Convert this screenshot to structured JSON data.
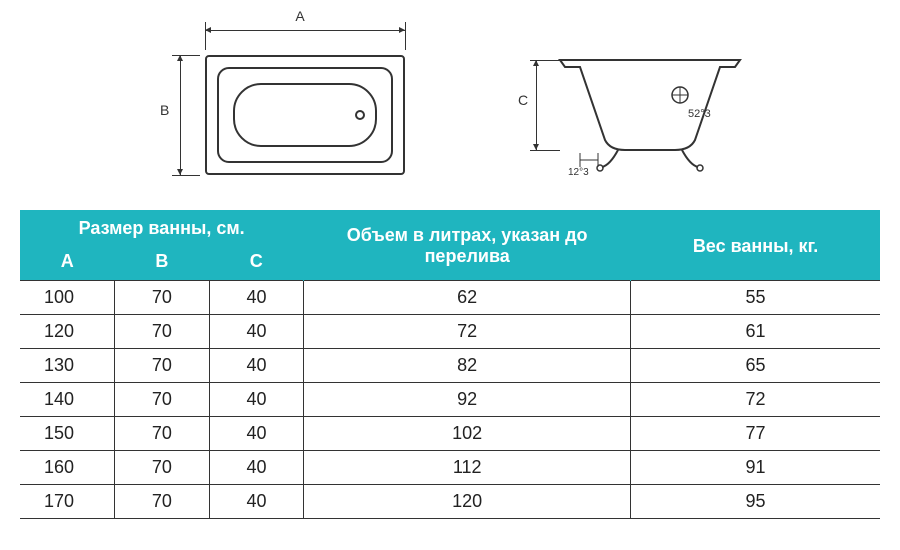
{
  "diagrams": {
    "label_a": "A",
    "label_b": "B",
    "label_c": "C",
    "side_angle": "52°3",
    "side_offset": "12°3"
  },
  "table": {
    "header_dimensions": "Размер ванны, см.",
    "header_a": "A",
    "header_b": "B",
    "header_c": "C",
    "header_volume": "Объем в литрах, указан до перелива",
    "header_weight": "Вес ванны, кг.",
    "rows": [
      {
        "a": "100",
        "b": "70",
        "c": "40",
        "vol": "62",
        "wt": "55"
      },
      {
        "a": "120",
        "b": "70",
        "c": "40",
        "vol": "72",
        "wt": "61"
      },
      {
        "a": "130",
        "b": "70",
        "c": "40",
        "vol": "82",
        "wt": "65"
      },
      {
        "a": "140",
        "b": "70",
        "c": "40",
        "vol": "92",
        "wt": "72"
      },
      {
        "a": "150",
        "b": "70",
        "c": "40",
        "vol": "102",
        "wt": "77"
      },
      {
        "a": "160",
        "b": "70",
        "c": "40",
        "vol": "112",
        "wt": "91"
      },
      {
        "a": "170",
        "b": "70",
        "c": "40",
        "vol": "120",
        "wt": "95"
      }
    ]
  },
  "colors": {
    "header_bg": "#1fb5bf",
    "header_text": "#ffffff",
    "border": "#333333",
    "text": "#222222",
    "background": "#ffffff"
  }
}
